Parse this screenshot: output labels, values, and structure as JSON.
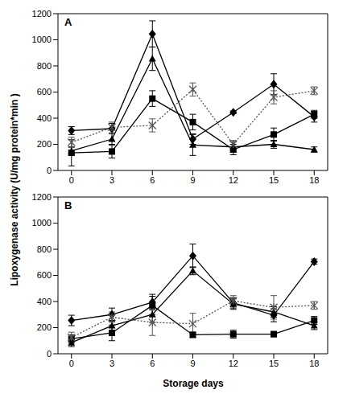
{
  "ylabel": "Lipoxygenase activity  (U/mg protein*min )",
  "xlabel": "Storage days",
  "chart_data": [
    {
      "type": "line",
      "title": "A",
      "x": [
        0,
        3,
        6,
        9,
        12,
        15,
        18
      ],
      "xlim": [
        -1,
        19
      ],
      "xticks": [
        0,
        3,
        6,
        9,
        12,
        15,
        18
      ],
      "ylim": [
        0,
        1200
      ],
      "yticks": [
        0,
        200,
        400,
        600,
        800,
        1000,
        1200
      ],
      "series": [
        {
          "color": "#000000",
          "marker": "diamond",
          "line_style": "solid",
          "values": [
            305,
            320,
            1045,
            240,
            445,
            660,
            410
          ],
          "errors": [
            30,
            40,
            100,
            40,
            10,
            80,
            40
          ]
        },
        {
          "color": "#000000",
          "marker": "square",
          "line_style": "solid",
          "values": [
            135,
            145,
            550,
            370,
            160,
            275,
            430
          ],
          "errors": [
            100,
            50,
            60,
            60,
            40,
            50,
            30
          ]
        },
        {
          "color": "#000000",
          "marker": "triangle",
          "line_style": "solid",
          "values": [
            150,
            240,
            855,
            195,
            180,
            200,
            160
          ],
          "errors": [
            30,
            40,
            90,
            80,
            40,
            30,
            20
          ]
        },
        {
          "color": "#555555",
          "marker": "x",
          "line_style": "dotted",
          "values": [
            215,
            330,
            345,
            620,
            200,
            560,
            610
          ],
          "errors": [
            40,
            40,
            50,
            50,
            30,
            50,
            30
          ]
        }
      ]
    },
    {
      "type": "line",
      "title": "B",
      "x": [
        0,
        3,
        6,
        9,
        12,
        15,
        18
      ],
      "xlim": [
        -1,
        19
      ],
      "xticks": [
        0,
        3,
        6,
        9,
        12,
        15,
        18
      ],
      "ylim": [
        0,
        1200
      ],
      "yticks": [
        0,
        200,
        400,
        600,
        800,
        1000,
        1200
      ],
      "series": [
        {
          "color": "#000000",
          "marker": "diamond",
          "line_style": "solid",
          "values": [
            255,
            300,
            395,
            750,
            390,
            295,
            705
          ],
          "errors": [
            40,
            50,
            60,
            90,
            40,
            50,
            20
          ]
        },
        {
          "color": "#000000",
          "marker": "square",
          "line_style": "solid",
          "values": [
            115,
            160,
            370,
            145,
            150,
            150,
            255
          ],
          "errors": [
            30,
            60,
            70,
            20,
            30,
            20,
            30
          ]
        },
        {
          "color": "#000000",
          "marker": "triangle",
          "line_style": "solid",
          "values": [
            85,
            215,
            300,
            635,
            380,
            320,
            215
          ],
          "errors": [
            30,
            40,
            60,
            30,
            40,
            40,
            30
          ]
        },
        {
          "color": "#555555",
          "marker": "x",
          "line_style": "dotted",
          "values": [
            125,
            280,
            240,
            230,
            405,
            355,
            370
          ],
          "errors": [
            40,
            40,
            100,
            80,
            40,
            90,
            30
          ]
        }
      ]
    }
  ]
}
